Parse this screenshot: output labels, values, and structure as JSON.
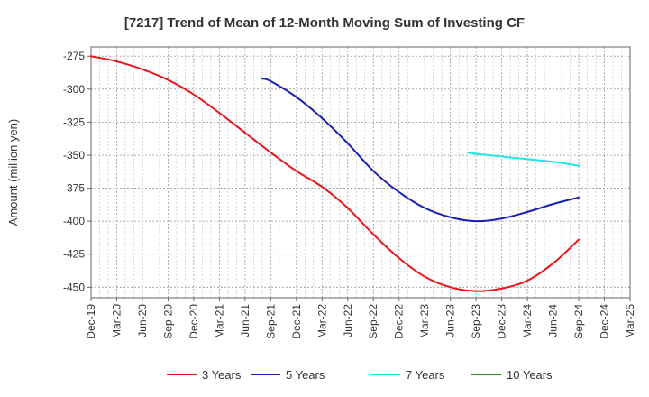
{
  "chart_data": {
    "type": "line",
    "title": "[7217]  Trend of Mean of 12-Month Moving Sum of Investing CF",
    "ylabel": "Amount (million yen)",
    "xlabel": "",
    "ylim": [
      -458,
      -268
    ],
    "yticks": [
      -275,
      -300,
      -325,
      -350,
      -375,
      -400,
      -425,
      -450
    ],
    "x_ticks": [
      "Dec-19",
      "Mar-20",
      "Jun-20",
      "Sep-20",
      "Dec-20",
      "Mar-21",
      "Jun-21",
      "Sep-21",
      "Dec-21",
      "Mar-22",
      "Jun-22",
      "Sep-22",
      "Dec-22",
      "Mar-23",
      "Jun-23",
      "Sep-23",
      "Dec-23",
      "Mar-24",
      "Jun-24",
      "Sep-24",
      "Dec-24",
      "Mar-25"
    ],
    "grid": true,
    "legend_position": "bottom",
    "series": [
      {
        "name": "3 Years",
        "color": "#e8161a",
        "points": [
          [
            0,
            -275
          ],
          [
            1,
            -279
          ],
          [
            2,
            -285
          ],
          [
            3,
            -293
          ],
          [
            4,
            -304
          ],
          [
            5,
            -318
          ],
          [
            6,
            -333
          ],
          [
            7,
            -348
          ],
          [
            8,
            -362
          ],
          [
            9,
            -374
          ],
          [
            10,
            -390
          ],
          [
            11,
            -410
          ],
          [
            12,
            -428
          ],
          [
            13,
            -442
          ],
          [
            14,
            -450
          ],
          [
            15,
            -453
          ],
          [
            16,
            -451
          ],
          [
            17,
            -445
          ],
          [
            18,
            -432
          ],
          [
            19,
            -414
          ]
        ]
      },
      {
        "name": "5 Years",
        "color": "#1a1fb5",
        "points": [
          [
            6.67,
            -292
          ],
          [
            7,
            -294
          ],
          [
            8,
            -306
          ],
          [
            9,
            -322
          ],
          [
            10,
            -341
          ],
          [
            11,
            -362
          ],
          [
            12,
            -378
          ],
          [
            13,
            -390
          ],
          [
            14,
            -397
          ],
          [
            15,
            -400
          ],
          [
            16,
            -398
          ],
          [
            17,
            -393
          ],
          [
            18,
            -387
          ],
          [
            19,
            -382
          ]
        ]
      },
      {
        "name": "7 Years",
        "color": "#1ee6e6",
        "points": [
          [
            14.67,
            -348
          ],
          [
            15,
            -349
          ],
          [
            16,
            -351
          ],
          [
            17,
            -353
          ],
          [
            18,
            -355
          ],
          [
            19,
            -358
          ]
        ]
      },
      {
        "name": "10 Years",
        "color": "#2a8a2a",
        "points": []
      }
    ]
  }
}
